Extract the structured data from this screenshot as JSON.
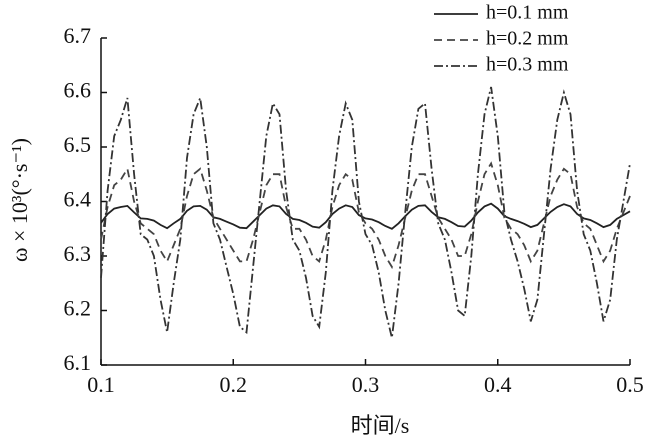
{
  "chart_data": {
    "type": "line",
    "x_label": "时间/s",
    "y_label": "ω × 10³(°·s⁻¹)",
    "x": [
      0.1,
      0.105,
      0.11,
      0.115,
      0.12,
      0.125,
      0.13,
      0.135,
      0.14,
      0.145,
      0.15,
      0.155,
      0.16,
      0.165,
      0.17,
      0.175,
      0.18,
      0.185,
      0.19,
      0.195,
      0.2,
      0.205,
      0.21,
      0.215,
      0.22,
      0.225,
      0.23,
      0.235,
      0.24,
      0.245,
      0.25,
      0.255,
      0.26,
      0.265,
      0.27,
      0.275,
      0.28,
      0.285,
      0.29,
      0.295,
      0.3,
      0.305,
      0.31,
      0.315,
      0.32,
      0.325,
      0.33,
      0.335,
      0.34,
      0.345,
      0.35,
      0.355,
      0.36,
      0.365,
      0.37,
      0.375,
      0.38,
      0.385,
      0.39,
      0.395,
      0.4,
      0.405,
      0.41,
      0.415,
      0.42,
      0.425,
      0.43,
      0.435,
      0.44,
      0.445,
      0.45,
      0.455,
      0.46,
      0.465,
      0.47,
      0.475,
      0.48,
      0.485,
      0.49,
      0.495,
      0.5
    ],
    "series": [
      {
        "name": "h=0.1 mm",
        "color": "#222222",
        "dash": "none",
        "values": [
          6.361,
          6.377,
          6.387,
          6.39,
          6.392,
          6.38,
          6.369,
          6.368,
          6.365,
          6.357,
          6.351,
          6.36,
          6.368,
          6.383,
          6.391,
          6.392,
          6.385,
          6.371,
          6.368,
          6.363,
          6.358,
          6.352,
          6.351,
          6.363,
          6.375,
          6.387,
          6.393,
          6.391,
          6.377,
          6.368,
          6.366,
          6.361,
          6.354,
          6.352,
          6.362,
          6.377,
          6.387,
          6.393,
          6.39,
          6.375,
          6.369,
          6.367,
          6.362,
          6.355,
          6.35,
          6.36,
          6.373,
          6.385,
          6.392,
          6.393,
          6.381,
          6.371,
          6.368,
          6.362,
          6.355,
          6.354,
          6.365,
          6.38,
          6.391,
          6.396,
          6.387,
          6.373,
          6.368,
          6.364,
          6.359,
          6.353,
          6.357,
          6.369,
          6.381,
          6.39,
          6.395,
          6.391,
          6.377,
          6.369,
          6.366,
          6.36,
          6.353,
          6.357,
          6.368,
          6.375,
          6.382
        ]
      },
      {
        "name": "h=0.2 mm",
        "color": "#444444",
        "dash": "8,5",
        "values": [
          6.33,
          6.39,
          6.43,
          6.44,
          6.46,
          6.4,
          6.36,
          6.35,
          6.34,
          6.31,
          6.29,
          6.32,
          6.35,
          6.41,
          6.45,
          6.46,
          6.42,
          6.37,
          6.35,
          6.33,
          6.31,
          6.29,
          6.29,
          6.33,
          6.38,
          6.43,
          6.45,
          6.45,
          6.39,
          6.35,
          6.35,
          6.33,
          6.3,
          6.29,
          6.33,
          6.39,
          6.43,
          6.45,
          6.44,
          6.38,
          6.36,
          6.35,
          6.33,
          6.3,
          6.28,
          6.32,
          6.37,
          6.42,
          6.45,
          6.45,
          6.41,
          6.37,
          6.35,
          6.33,
          6.3,
          6.3,
          6.34,
          6.4,
          6.45,
          6.47,
          6.43,
          6.37,
          6.35,
          6.34,
          6.32,
          6.29,
          6.31,
          6.36,
          6.41,
          6.44,
          6.46,
          6.45,
          6.39,
          6.36,
          6.35,
          6.32,
          6.29,
          6.31,
          6.35,
          6.38,
          6.41
        ]
      },
      {
        "name": "h=0.3 mm",
        "color": "#333333",
        "dash": "9,3,2,3",
        "values": [
          6.26,
          6.42,
          6.52,
          6.55,
          6.59,
          6.45,
          6.34,
          6.33,
          6.3,
          6.22,
          6.16,
          6.25,
          6.33,
          6.48,
          6.56,
          6.59,
          6.5,
          6.36,
          6.33,
          6.28,
          6.23,
          6.17,
          6.16,
          6.28,
          6.4,
          6.52,
          6.58,
          6.56,
          6.42,
          6.33,
          6.31,
          6.26,
          6.19,
          6.17,
          6.27,
          6.42,
          6.52,
          6.58,
          6.55,
          6.4,
          6.34,
          6.32,
          6.27,
          6.2,
          6.15,
          6.25,
          6.38,
          6.5,
          6.57,
          6.58,
          6.46,
          6.36,
          6.33,
          6.27,
          6.2,
          6.19,
          6.3,
          6.45,
          6.56,
          6.61,
          6.52,
          6.38,
          6.33,
          6.29,
          6.24,
          6.18,
          6.22,
          6.34,
          6.46,
          6.55,
          6.6,
          6.56,
          6.42,
          6.34,
          6.31,
          6.25,
          6.18,
          6.22,
          6.33,
          6.4,
          6.47
        ]
      }
    ],
    "xlim": [
      0.1,
      0.5
    ],
    "xticks": [
      0.1,
      0.2,
      0.3,
      0.4,
      0.5
    ],
    "ylim": [
      6.1,
      6.7
    ],
    "yticks": [
      6.1,
      6.2,
      6.3,
      6.4,
      6.5,
      6.6,
      6.7
    ],
    "legend": "top-right"
  }
}
